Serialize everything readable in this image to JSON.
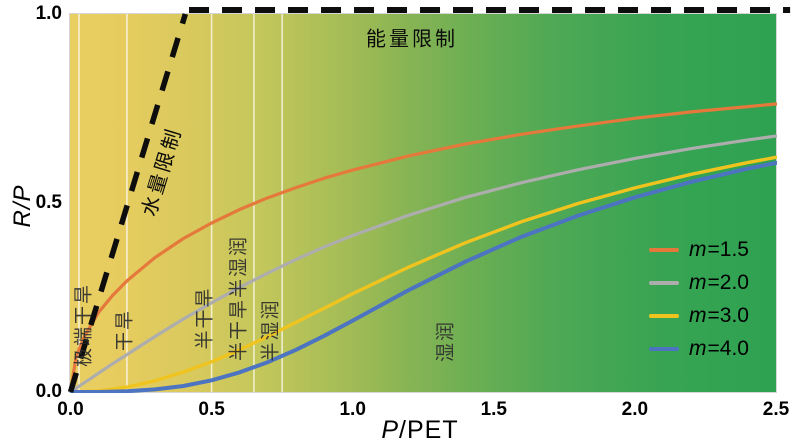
{
  "figure": {
    "ylabel": "R/P",
    "xlabel_italic": "P",
    "xlabel_rest": "/PET"
  },
  "chart_data": {
    "type": "line",
    "title": "",
    "xlabel": "P/PET",
    "ylabel": "R/P",
    "xlim": [
      0,
      2.5
    ],
    "ylim": [
      0,
      1.0
    ],
    "grid": false,
    "legend_position": "lower right",
    "background_gradient": [
      "#e9cf61",
      "#2ea251"
    ],
    "x_ticks": [
      "0.0",
      "0.5",
      "1.0",
      "1.5",
      "2.0",
      "2.5"
    ],
    "y_ticks": [
      "0.0",
      "0.5",
      "1.0"
    ],
    "x_tick_values": [
      0,
      0.5,
      1.0,
      1.5,
      2.0,
      2.5
    ],
    "y_tick_values": [
      0,
      0.5,
      1.0
    ],
    "x": [
      0,
      0.02,
      0.05,
      0.1,
      0.15,
      0.2,
      0.3,
      0.4,
      0.5,
      0.6,
      0.7,
      0.8,
      0.9,
      1.0,
      1.2,
      1.4,
      1.6,
      1.8,
      2.0,
      2.2,
      2.4,
      2.5
    ],
    "series": [
      {
        "name": "m=1.5",
        "prefix": "m",
        "label": "=1.5",
        "color": "#e4793b",
        "width": 3.2,
        "values": [
          0,
          0.094,
          0.148,
          0.211,
          0.256,
          0.294,
          0.356,
          0.406,
          0.447,
          0.483,
          0.514,
          0.541,
          0.566,
          0.587,
          0.625,
          0.656,
          0.682,
          0.704,
          0.724,
          0.741,
          0.755,
          0.762
        ]
      },
      {
        "name": "m=2.0",
        "prefix": "m",
        "label": "=2.0",
        "color": "#adadad",
        "width": 3.2,
        "values": [
          0,
          0.01,
          0.025,
          0.05,
          0.075,
          0.099,
          0.147,
          0.193,
          0.236,
          0.277,
          0.315,
          0.351,
          0.384,
          0.414,
          0.468,
          0.515,
          0.554,
          0.588,
          0.618,
          0.644,
          0.667,
          0.677
        ]
      },
      {
        "name": "m=3.0",
        "prefix": "m",
        "label": "=3.0",
        "color": "#f0c41f",
        "width": 3.4,
        "values": [
          0,
          0.0,
          0.001,
          0.003,
          0.008,
          0.013,
          0.03,
          0.053,
          0.08,
          0.112,
          0.147,
          0.185,
          0.222,
          0.26,
          0.331,
          0.395,
          0.451,
          0.499,
          0.54,
          0.576,
          0.607,
          0.621
        ]
      },
      {
        "name": "m=4.0",
        "prefix": "m",
        "label": "=4.0",
        "color": "#4c74c0",
        "width": 4.0,
        "values": [
          0,
          0.0,
          0.0,
          0.0,
          0.001,
          0.002,
          0.007,
          0.016,
          0.031,
          0.052,
          0.079,
          0.112,
          0.149,
          0.189,
          0.27,
          0.345,
          0.411,
          0.467,
          0.515,
          0.556,
          0.591,
          0.606
        ]
      }
    ],
    "water_limit_line": {
      "x": [
        0,
        0.407
      ],
      "y": [
        0,
        1.0
      ],
      "style": "dashed",
      "color": "#0d0d0d"
    },
    "energy_limit_line": {
      "x": [
        0.42,
        2.55
      ],
      "y": [
        1.0,
        1.0
      ],
      "style": "dashed",
      "color": "#0d0d0d"
    },
    "zone_boundaries_x": [
      0.03,
      0.2,
      0.5,
      0.65,
      0.75
    ],
    "annotations": [
      {
        "name": "energy-limit-label",
        "text": "能量限制",
        "x": 1.21,
        "y": 0.938,
        "rot": 0,
        "cls": "limit"
      },
      {
        "name": "water-limit-label",
        "text": "水量限制",
        "x": 0.318,
        "y": 0.585,
        "rot": -73,
        "cls": "limit"
      },
      {
        "name": "zone-label-hyper-arid",
        "text": "极端干旱",
        "x": 0.039,
        "y": 0.177,
        "rot": -90,
        "cls": "zone"
      },
      {
        "name": "zone-label-arid",
        "text": "干旱",
        "x": 0.185,
        "y": 0.165,
        "rot": -90,
        "cls": "zone"
      },
      {
        "name": "zone-label-semi-arid",
        "text": "半干旱",
        "x": 0.468,
        "y": 0.196,
        "rot": -90,
        "cls": "zone"
      },
      {
        "name": "zone-label-semi-arid-semi-humid",
        "text": "半干旱半湿润",
        "x": 0.59,
        "y": 0.25,
        "rot": -90,
        "cls": "zone"
      },
      {
        "name": "zone-label-semi-humid",
        "text": "半湿润",
        "x": 0.703,
        "y": 0.164,
        "rot": -90,
        "cls": "zone"
      },
      {
        "name": "zone-label-humid",
        "text": "湿润",
        "x": 1.325,
        "y": 0.135,
        "rot": -90,
        "cls": "zone"
      }
    ]
  }
}
